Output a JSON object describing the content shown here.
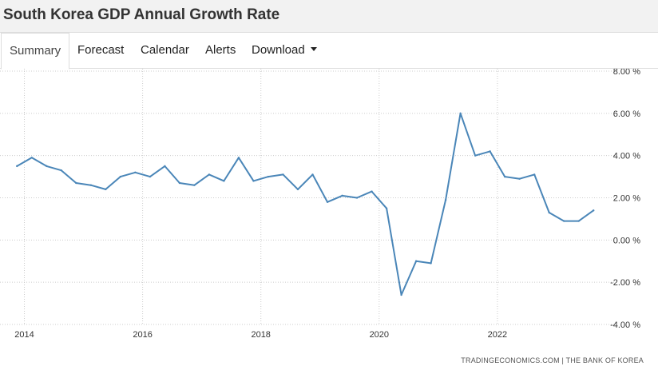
{
  "page": {
    "title": "South Korea GDP Annual Growth Rate"
  },
  "tabs": [
    {
      "label": "Summary",
      "active": true
    },
    {
      "label": "Forecast",
      "active": false
    },
    {
      "label": "Calendar",
      "active": false
    },
    {
      "label": "Alerts",
      "active": false
    },
    {
      "label": "Download",
      "active": false,
      "dropdown": true
    }
  ],
  "source_text": "TRADINGECONOMICS.COM  |  THE BANK OF KOREA",
  "colors": {
    "line": "#4a86b8",
    "grid": "#cccccc"
  },
  "chart_data": {
    "type": "line",
    "title": "",
    "xlabel": "",
    "ylabel": "",
    "grid": true,
    "x_tick_labels": [
      "2014",
      "2016",
      "2018",
      "2020",
      "2022"
    ],
    "y_tick_labels": [
      "8.00 %",
      "6.00 %",
      "4.00 %",
      "2.00 %",
      "0.00 %",
      "-2.00 %",
      "-4.00 %"
    ],
    "y_ticks": [
      8,
      6,
      4,
      2,
      0,
      -2,
      -4
    ],
    "ylim": [
      -4,
      8
    ],
    "xlim": [
      "2013-10",
      "2024-01"
    ],
    "series": [
      {
        "values": [
          {
            "x": "2013 Q4",
            "y": 3.5
          },
          {
            "x": "2014 Q1",
            "y": 3.9
          },
          {
            "x": "2014 Q2",
            "y": 3.5
          },
          {
            "x": "2014 Q3",
            "y": 3.3
          },
          {
            "x": "2014 Q4",
            "y": 2.7
          },
          {
            "x": "2015 Q1",
            "y": 2.6
          },
          {
            "x": "2015 Q2",
            "y": 2.4
          },
          {
            "x": "2015 Q3",
            "y": 3.0
          },
          {
            "x": "2015 Q4",
            "y": 3.2
          },
          {
            "x": "2016 Q1",
            "y": 3.0
          },
          {
            "x": "2016 Q2",
            "y": 3.5
          },
          {
            "x": "2016 Q3",
            "y": 2.7
          },
          {
            "x": "2016 Q4",
            "y": 2.6
          },
          {
            "x": "2017 Q1",
            "y": 3.1
          },
          {
            "x": "2017 Q2",
            "y": 2.8
          },
          {
            "x": "2017 Q3",
            "y": 3.9
          },
          {
            "x": "2017 Q4",
            "y": 2.8
          },
          {
            "x": "2018 Q1",
            "y": 3.0
          },
          {
            "x": "2018 Q2",
            "y": 3.1
          },
          {
            "x": "2018 Q3",
            "y": 2.4
          },
          {
            "x": "2018 Q4",
            "y": 3.1
          },
          {
            "x": "2019 Q1",
            "y": 1.8
          },
          {
            "x": "2019 Q2",
            "y": 2.1
          },
          {
            "x": "2019 Q3",
            "y": 2.0
          },
          {
            "x": "2019 Q4",
            "y": 2.3
          },
          {
            "x": "2020 Q1",
            "y": 1.5
          },
          {
            "x": "2020 Q2",
            "y": -2.6
          },
          {
            "x": "2020 Q3",
            "y": -1.0
          },
          {
            "x": "2020 Q4",
            "y": -1.1
          },
          {
            "x": "2021 Q1",
            "y": 1.9
          },
          {
            "x": "2021 Q2",
            "y": 6.0
          },
          {
            "x": "2021 Q3",
            "y": 4.0
          },
          {
            "x": "2021 Q4",
            "y": 4.2
          },
          {
            "x": "2022 Q1",
            "y": 3.0
          },
          {
            "x": "2022 Q2",
            "y": 2.9
          },
          {
            "x": "2022 Q3",
            "y": 3.1
          },
          {
            "x": "2022 Q4",
            "y": 1.3
          },
          {
            "x": "2023 Q1",
            "y": 0.9
          },
          {
            "x": "2023 Q2",
            "y": 0.9
          },
          {
            "x": "2023 Q3",
            "y": 1.4
          }
        ]
      }
    ]
  }
}
